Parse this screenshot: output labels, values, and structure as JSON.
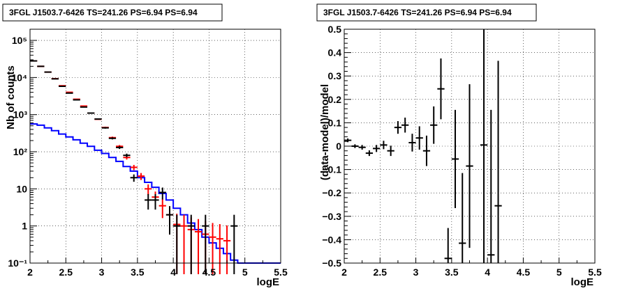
{
  "chart_data": [
    {
      "type": "line",
      "title": "3FGL J1503.7-6426 TS=241.26 PS=6.94 PS=6.94",
      "xlabel": "logE",
      "ylabel": "Nb of counts",
      "xlim": [
        2,
        5.5
      ],
      "ylim": [
        0.1,
        200000
      ],
      "yscale": "log",
      "grid": true,
      "xticks": [
        "2",
        "2.5",
        "3",
        "3.5",
        "4",
        "4.5",
        "5",
        "5.5"
      ],
      "yticks": [
        "10⁻¹",
        "1",
        "10",
        "10²",
        "10³",
        "10⁴",
        "10⁵"
      ],
      "colors": {
        "data": "#000000",
        "model_points": "#ff0000",
        "background_model": "#0000ff"
      },
      "data_points": {
        "x": [
          2.05,
          2.15,
          2.25,
          2.35,
          2.45,
          2.55,
          2.65,
          2.75,
          2.85,
          2.95,
          3.05,
          3.15,
          3.25,
          3.35,
          3.45,
          3.55,
          3.65,
          3.75,
          3.85,
          3.95,
          4.05,
          4.15,
          4.25,
          4.35,
          4.45,
          4.55,
          4.65,
          4.75,
          4.85,
          4.95
        ],
        "y": [
          28000,
          20000,
          14000,
          9200,
          5800,
          3800,
          2500,
          1600,
          1100,
          760,
          440,
          230,
          130,
          80,
          20,
          0,
          5,
          5,
          8,
          2,
          1,
          0,
          1,
          0,
          1,
          0,
          0,
          0,
          1,
          0
        ]
      },
      "model_points": {
        "x": [
          2.05,
          2.15,
          2.25,
          2.35,
          2.45,
          2.55,
          2.65,
          2.75,
          2.85,
          2.95,
          3.05,
          3.15,
          3.25,
          3.35,
          3.45,
          3.55,
          3.65,
          3.75,
          3.85,
          3.95,
          4.05,
          4.15,
          4.25,
          4.35,
          4.45,
          4.55,
          4.65,
          4.75
        ],
        "y": [
          28000,
          20000,
          14000,
          9300,
          6000,
          4000,
          2600,
          1700,
          1100,
          750,
          450,
          240,
          140,
          70,
          38,
          22,
          10,
          6,
          3.5,
          2,
          1.1,
          1.0,
          0.8,
          0.7,
          0.6,
          0.5,
          0.45,
          0.4
        ]
      },
      "background_model": {
        "edges": [
          2.0,
          2.1,
          2.2,
          2.3,
          2.4,
          2.5,
          2.6,
          2.7,
          2.8,
          2.9,
          3.0,
          3.1,
          3.2,
          3.3,
          3.4,
          3.5,
          3.6,
          3.7,
          3.8,
          3.9,
          4.0,
          4.1,
          4.2,
          4.3,
          4.4,
          4.5,
          4.6,
          4.7,
          4.8,
          4.9,
          5.0,
          5.5
        ],
        "values": [
          560,
          520,
          440,
          370,
          300,
          250,
          210,
          170,
          140,
          110,
          90,
          70,
          55,
          40,
          30,
          20,
          15,
          11,
          7.5,
          5,
          3,
          2,
          1.2,
          0.8,
          0.5,
          0.35,
          0.25,
          0.18,
          0.12,
          0.1,
          0.1
        ]
      }
    },
    {
      "type": "scatter",
      "title": "3FGL J1503.7-6426 TS=241.26 PS=6.94 PS=6.94",
      "xlabel": "logE",
      "ylabel": "(data-model)/model",
      "xlim": [
        2,
        5.5
      ],
      "ylim": [
        -0.5,
        0.5
      ],
      "grid": true,
      "xticks": [
        "2",
        "2.5",
        "3",
        "3.5",
        "4",
        "4.5",
        "5",
        "5.5"
      ],
      "yticks": [
        "−0.5",
        "−0.4",
        "−0.3",
        "−0.2",
        "−0.1",
        "0",
        "0.1",
        "0.2",
        "0.3",
        "0.4",
        "0.5"
      ],
      "series": [
        {
          "x": [
            2.05,
            2.15,
            2.25,
            2.35,
            2.45,
            2.55,
            2.65,
            2.75,
            2.85,
            2.95,
            3.05,
            3.15,
            3.25,
            3.35,
            3.45,
            3.55,
            3.65,
            3.75,
            3.95,
            4.05,
            4.15
          ],
          "y": [
            0.025,
            0.0,
            -0.005,
            -0.03,
            -0.01,
            0.005,
            -0.02,
            0.08,
            0.09,
            0.015,
            0.035,
            -0.02,
            0.09,
            0.245,
            -0.48,
            -0.055,
            -0.415,
            -0.085,
            0.005,
            -0.465,
            -0.255
          ],
          "err": [
            0.008,
            0.008,
            0.01,
            0.012,
            0.015,
            0.018,
            0.022,
            0.027,
            0.032,
            0.038,
            0.05,
            0.065,
            0.08,
            0.13,
            0.13,
            0.21,
            0.3,
            0.35,
            0.6,
            0.62,
            0.62
          ]
        }
      ]
    }
  ]
}
